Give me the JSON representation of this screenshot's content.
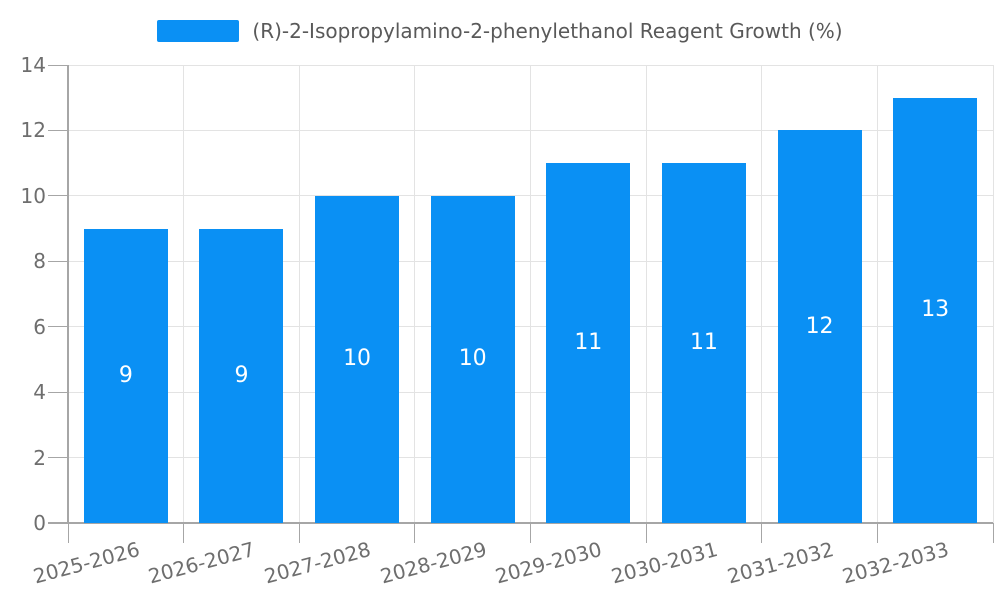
{
  "chart_data": {
    "type": "bar",
    "title": "(R)-2-Isopropylamino-2-phenylethanol Reagent Growth (%)",
    "legend_entries": [
      "(R)-2-Isopropylamino-2-phenylethanol Reagent Growth (%)"
    ],
    "legend_position": "top-center",
    "categories": [
      "2025-2026",
      "2026-2027",
      "2027-2028",
      "2028-2029",
      "2029-2030",
      "2030-2031",
      "2031-2032",
      "2032-2033"
    ],
    "values": [
      9,
      9,
      10,
      10,
      11,
      11,
      12,
      13
    ],
    "bar_value_labels": [
      "9",
      "9",
      "10",
      "10",
      "11",
      "11",
      "12",
      "13"
    ],
    "xlabel": "",
    "ylabel": "",
    "ylim": [
      0,
      14
    ],
    "yticks": [
      0,
      2,
      4,
      6,
      8,
      10,
      12,
      14
    ],
    "grid": true,
    "x_tick_rotation_deg": -15,
    "colors": {
      "bar": "#0a90f4",
      "bar_label": "#ffffff",
      "axis_label": "#6e6e6e",
      "legend_text": "#595959",
      "gridline": "#e3e3e3",
      "axis_line": "#a6a6a6",
      "background": "#ffffff"
    }
  }
}
